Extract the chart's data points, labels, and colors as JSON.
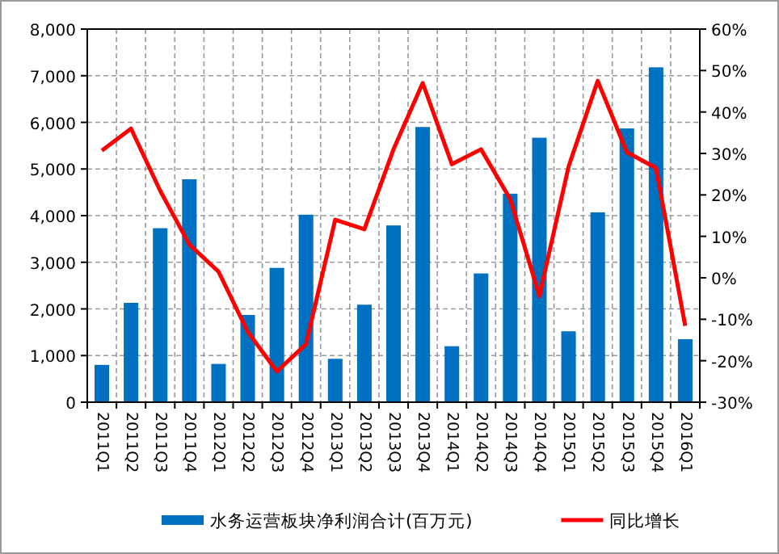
{
  "chart_data": {
    "type": "bar",
    "categories": [
      "2011Q1",
      "2011Q2",
      "2011Q3",
      "2011Q4",
      "2012Q1",
      "2012Q2",
      "2012Q3",
      "2012Q4",
      "2013Q1",
      "2013Q2",
      "2013Q3",
      "2013Q4",
      "2014Q1",
      "2014Q2",
      "2014Q3",
      "2014Q4",
      "2015Q1",
      "2015Q2",
      "2015Q3",
      "2015Q4",
      "2016Q1"
    ],
    "series": [
      {
        "name": "水务运营板块净利润合计(百万元)",
        "color": "#0070c0",
        "values": [
          800,
          2130,
          3730,
          4780,
          820,
          1870,
          2880,
          4020,
          930,
          2090,
          3790,
          5900,
          1200,
          2760,
          4470,
          5670,
          1520,
          4070,
          5870,
          7180,
          1350
        ]
      },
      {
        "name": "同比增长",
        "type": "line",
        "axis": "y2",
        "color": "#ff0000",
        "values": [
          30.7,
          36,
          21,
          8,
          1.5,
          -13,
          -22.6,
          -16,
          14,
          11.7,
          31,
          47,
          27.4,
          31,
          19,
          -4.4,
          26.8,
          47.5,
          30.3,
          26.5,
          -11.6
        ]
      }
    ],
    "ylim": [
      0,
      8000
    ],
    "yticks": [
      {
        "value": 0,
        "label": "0"
      },
      {
        "value": 1000,
        "label": "1,000"
      },
      {
        "value": 2000,
        "label": "2,000"
      },
      {
        "value": 3000,
        "label": "3,000"
      },
      {
        "value": 4000,
        "label": "4,000"
      },
      {
        "value": 5000,
        "label": "5,000"
      },
      {
        "value": 6000,
        "label": "6,000"
      },
      {
        "value": 7000,
        "label": "7,000"
      },
      {
        "value": 8000,
        "label": "8,000"
      }
    ],
    "y2lim": [
      -30,
      60
    ],
    "y2ticks": [
      {
        "value": -30,
        "label": "-30%"
      },
      {
        "value": -20,
        "label": "-20%"
      },
      {
        "value": -10,
        "label": "-10%"
      },
      {
        "value": 0,
        "label": "0%"
      },
      {
        "value": 10,
        "label": "10%"
      },
      {
        "value": 20,
        "label": "20%"
      },
      {
        "value": 30,
        "label": "30%"
      },
      {
        "value": 40,
        "label": "40%"
      },
      {
        "value": 50,
        "label": "50%"
      },
      {
        "value": 60,
        "label": "60%"
      }
    ],
    "grid": true,
    "legend": "bottom",
    "marker": "none",
    "line_style": "solid"
  }
}
